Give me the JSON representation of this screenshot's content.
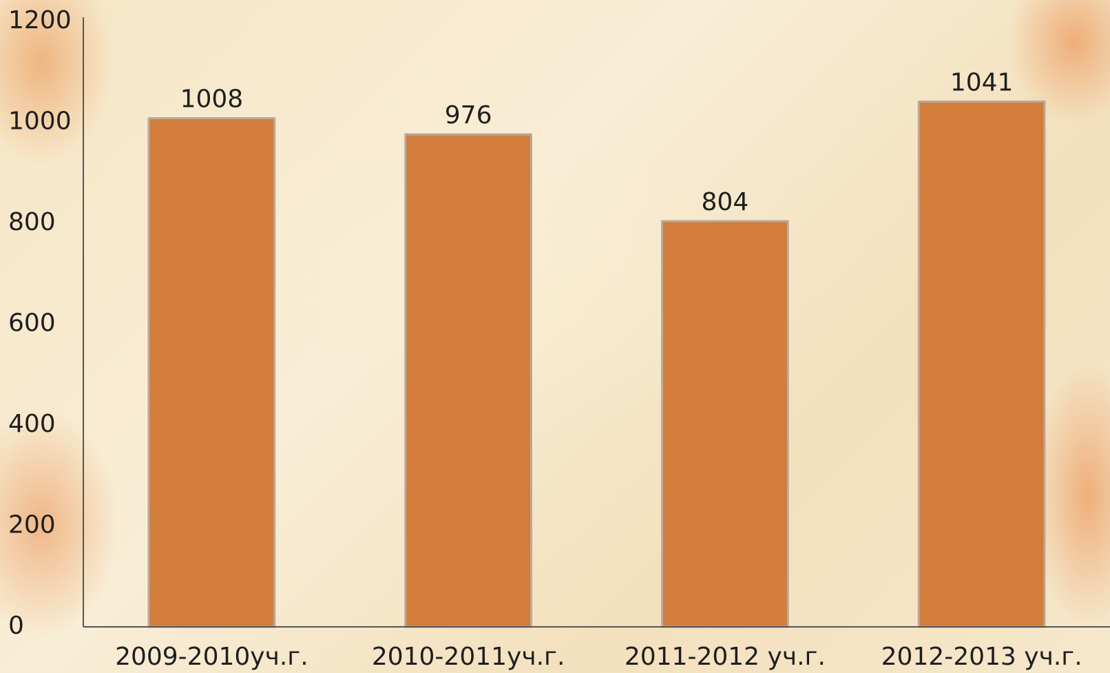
{
  "chart_data": {
    "type": "bar",
    "categories": [
      "2009-2010уч.г.",
      "2010-2011уч.г.",
      "2011-2012 уч.г.",
      "2012-2013 уч.г."
    ],
    "values": [
      1008,
      976,
      804,
      1041
    ],
    "color": "#d27d3c",
    "ylim": [
      0,
      1200
    ],
    "yticks": [
      0,
      200,
      400,
      600,
      800,
      1000,
      1200
    ],
    "grid": false
  }
}
